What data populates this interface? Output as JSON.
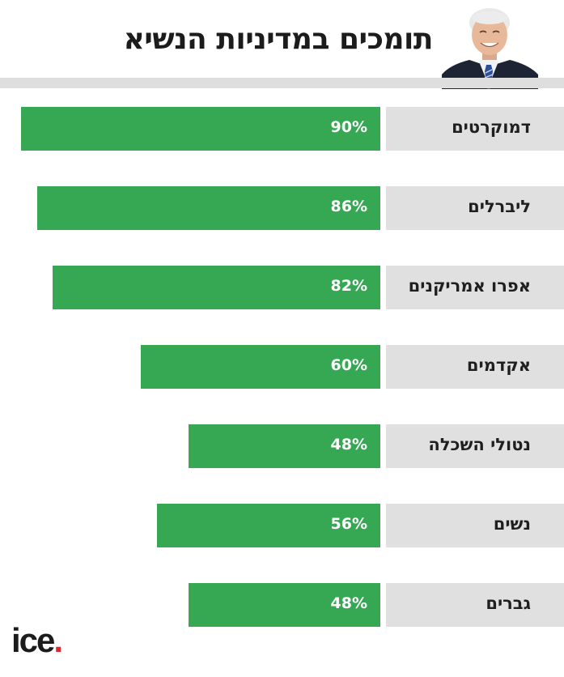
{
  "header": {
    "title": "תומכים במדיניות הנשיא"
  },
  "logo": {
    "text": "ice",
    "dot": ".",
    "dot_color": "#e2232a"
  },
  "colors": {
    "bar": "#36a853",
    "label_bg": "#e0e0e0",
    "rule": "#dedede"
  },
  "chart_data": {
    "type": "bar",
    "orientation": "horizontal",
    "categories": [
      "דמוקרטים",
      "ליברלים",
      "אפרו אמריקנים",
      "אקדמים",
      "נטולי השכלה",
      "נשים",
      "גברים"
    ],
    "values": [
      90,
      86,
      82,
      60,
      48,
      56,
      48
    ],
    "value_labels": [
      "90%",
      "86%",
      "82%",
      "60%",
      "48%",
      "56%",
      "48%"
    ],
    "title": "תומכים במדיניות הנשיא",
    "xlim": [
      0,
      100
    ],
    "grid": false,
    "legend": "none"
  }
}
